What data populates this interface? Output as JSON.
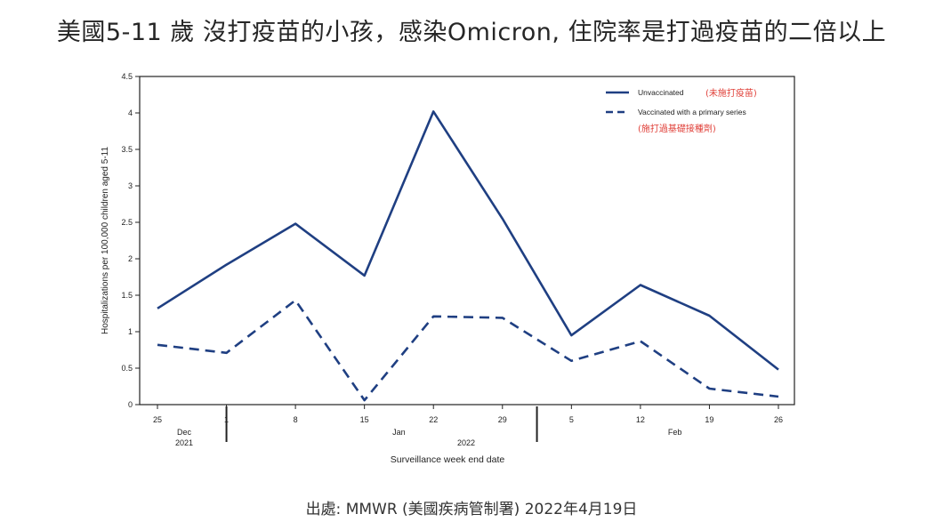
{
  "slide": {
    "title": "美國5-11 歲 沒打疫苗的小孩，感染Omicron, 住院率是打過疫苗的二倍以上",
    "source": "出處: MMWR (美國疾病管制署) 2022年4月19日"
  },
  "colors": {
    "series": "#1f3f82",
    "legend_note": "#e0413a",
    "axis": "#222222"
  },
  "chart_data": {
    "type": "line",
    "title": "",
    "xlabel": "Surveillance week end date",
    "ylabel": "Hospitalizations per 100,000 children aged 5-11",
    "ylim": [
      0,
      4.5
    ],
    "y_ticks": [
      "0",
      "0.5",
      "1",
      "1.5",
      "2",
      "2.5",
      "3",
      "3.5",
      "4",
      "4.5"
    ],
    "x": [
      "2021-12-25",
      "2022-01-01",
      "2022-01-08",
      "2022-01-15",
      "2022-01-22",
      "2022-01-29",
      "2022-02-05",
      "2022-02-12",
      "2022-02-19",
      "2022-02-26"
    ],
    "x_tick_labels": [
      "25",
      "1",
      "8",
      "15",
      "22",
      "29",
      "5",
      "12",
      "19",
      "26"
    ],
    "month_labels": [
      {
        "label": "Dec",
        "sub": "2021",
        "at_index": 0.5
      },
      {
        "label": "Jan",
        "sub": "",
        "at_index": 3.5
      },
      {
        "label": "Feb",
        "sub": "",
        "at_index": 7.5
      }
    ],
    "year_label": {
      "label": "2022",
      "at_index": 4.5
    },
    "period_dividers_at_index": [
      1,
      6
    ],
    "grid": false,
    "legend_position": "top-right",
    "series": [
      {
        "name": "Unvaccinated",
        "note": "(未施打疫苗)",
        "style": "solid",
        "values": [
          1.32,
          1.92,
          2.48,
          1.77,
          4.02,
          2.55,
          0.95,
          1.64,
          1.22,
          0.48
        ]
      },
      {
        "name": "Vaccinated with a primary series",
        "note": "(施打過基礎接種劑)",
        "style": "dashed",
        "values": [
          0.82,
          0.71,
          1.43,
          0.06,
          1.21,
          1.19,
          0.6,
          0.87,
          0.22,
          0.11
        ]
      }
    ]
  }
}
